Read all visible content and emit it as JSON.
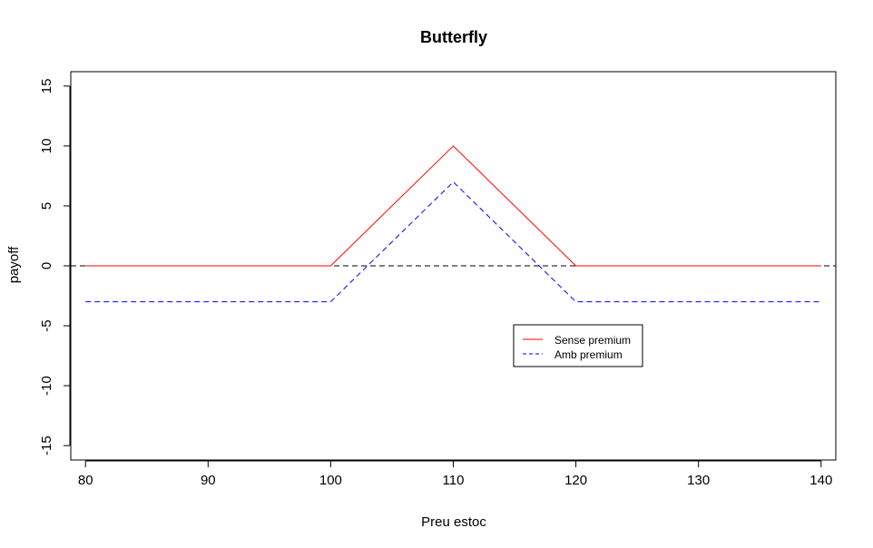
{
  "chart_data": {
    "type": "line",
    "title": "Butterfly",
    "xlabel": "Preu estoc",
    "ylabel": "payoff",
    "xlim": [
      78.8,
      141.2
    ],
    "ylim": [
      -16.2,
      16.2
    ],
    "xticks": [
      80,
      90,
      100,
      110,
      120,
      130,
      140
    ],
    "yticks": [
      -15,
      -10,
      -5,
      0,
      5,
      10,
      15
    ],
    "grid": false,
    "legend_position": "center-right",
    "x": [
      80,
      100,
      110,
      120,
      140
    ],
    "series": [
      {
        "name": "Sense premium",
        "values": [
          0,
          0,
          10,
          0,
          0
        ],
        "color": "#ff0000",
        "dash": "solid"
      },
      {
        "name": "Amb premium",
        "values": [
          -3,
          -3,
          7,
          -3,
          -3
        ],
        "color": "#0000ff",
        "dash": "dashed"
      }
    ],
    "reference_line": {
      "y": 0,
      "color": "#000000",
      "dash": "dashed"
    }
  }
}
